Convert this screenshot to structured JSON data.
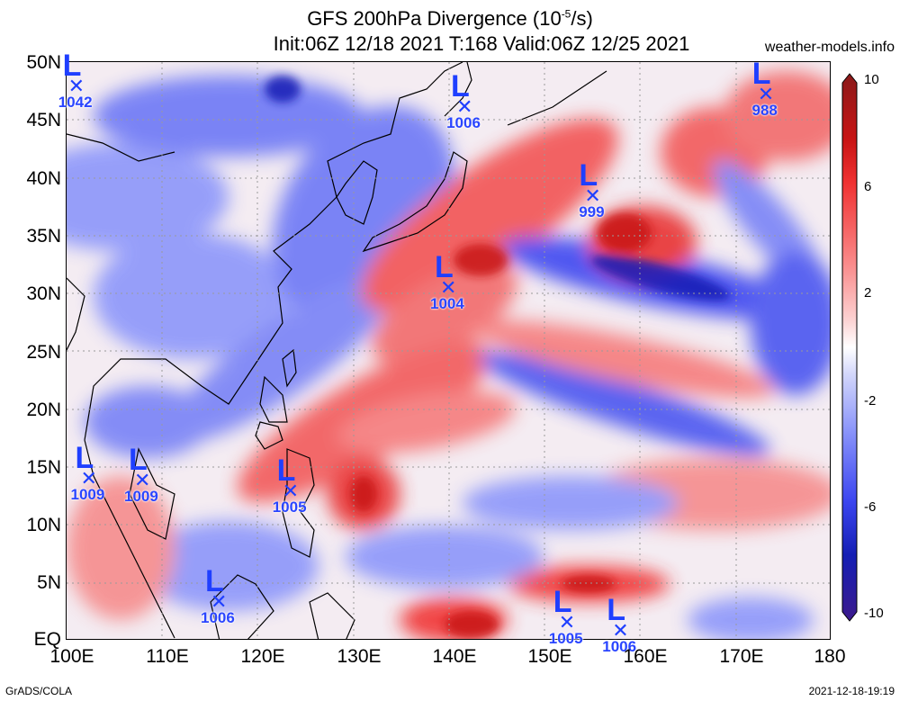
{
  "header": {
    "title_main": "GFS 200hPa Divergence (10",
    "title_exp": "-5",
    "title_end": "/s)",
    "subtitle": "Init:06Z 12/18 2021 T:168 Valid:06Z 12/25 2021",
    "site": "weather-models.info"
  },
  "axes": {
    "lat_labels": [
      "50N",
      "45N",
      "40N",
      "35N",
      "30N",
      "25N",
      "20N",
      "15N",
      "10N",
      "5N",
      "EQ"
    ],
    "lon_labels": [
      "100E",
      "110E",
      "120E",
      "130E",
      "140E",
      "150E",
      "160E",
      "170E",
      "180"
    ]
  },
  "colorbar": {
    "labels": [
      "10",
      "6",
      "2",
      "-2",
      "-6",
      "-10"
    ],
    "colors": [
      "#8a1a1a",
      "#c81414",
      "#f03232",
      "#fa8c8c",
      "#fcd2d2",
      "#ffffff",
      "#d2d6fa",
      "#8c96fa",
      "#3c46f0",
      "#141eb4",
      "#3c1a8c"
    ]
  },
  "lows": [
    {
      "letter": "L",
      "pressure": "1042",
      "lon": 101.0,
      "lat": 47.8
    },
    {
      "letter": "L",
      "pressure": "1006",
      "lon": 141.6,
      "lat": 46.0
    },
    {
      "letter": "L",
      "pressure": "988",
      "lon": 173.1,
      "lat": 47.1
    },
    {
      "letter": "L",
      "pressure": "999",
      "lon": 155.0,
      "lat": 38.3
    },
    {
      "letter": "L",
      "pressure": "1004",
      "lon": 139.9,
      "lat": 30.4
    },
    {
      "letter": "L",
      "pressure": "1009",
      "lon": 102.3,
      "lat": 13.9
    },
    {
      "letter": "L",
      "pressure": "1009",
      "lon": 107.9,
      "lat": 13.8
    },
    {
      "letter": "L",
      "pressure": "1005",
      "lon": 123.4,
      "lat": 12.8
    },
    {
      "letter": "L",
      "pressure": "1006",
      "lon": 115.9,
      "lat": 3.3
    },
    {
      "letter": "L",
      "pressure": "1005",
      "lon": 152.3,
      "lat": 1.5
    },
    {
      "letter": "L",
      "pressure": "1006",
      "lon": 157.9,
      "lat": 0.8
    }
  ],
  "credits": {
    "left": "GrADS/COLA",
    "right": "2021-12-18-19:19"
  }
}
